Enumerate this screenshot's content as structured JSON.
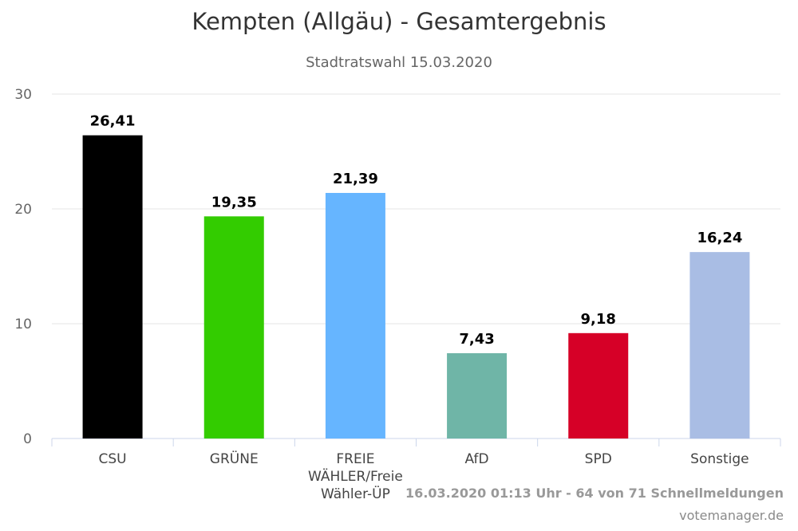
{
  "header": {
    "title": "Kempten (Allgäu) - Gesamtergebnis",
    "subtitle": "Stadtratswahl 15.03.2020"
  },
  "footer": {
    "timestamp": "16.03.2020 01:13 Uhr - 64 von 71 Schnellmeldungen",
    "source": "votemanager.de"
  },
  "chart_data": {
    "type": "bar",
    "title": "Kempten (Allgäu) - Gesamtergebnis",
    "subtitle": "Stadtratswahl 15.03.2020",
    "xlabel": "",
    "ylabel": "",
    "ylim": [
      0,
      30
    ],
    "yticks": [
      "0",
      "10",
      "20",
      "30"
    ],
    "grid": true,
    "legend": "none",
    "categories": [
      [
        "CSU"
      ],
      [
        "GRÜNE"
      ],
      [
        "FREIE",
        "WÄHLER/Freie",
        "Wähler-ÜP"
      ],
      [
        "AfD"
      ],
      [
        "SPD"
      ],
      [
        "Sonstige"
      ]
    ],
    "values": [
      26.41,
      19.35,
      21.39,
      7.43,
      9.18,
      16.24
    ],
    "data_labels": [
      "26,41",
      "19,35",
      "21,39",
      "7,43",
      "9,18",
      "16,24"
    ],
    "colors": [
      "#000000",
      "#33cc00",
      "#66b5ff",
      "#6fb5a7",
      "#d60027",
      "#a9bde4"
    ]
  }
}
